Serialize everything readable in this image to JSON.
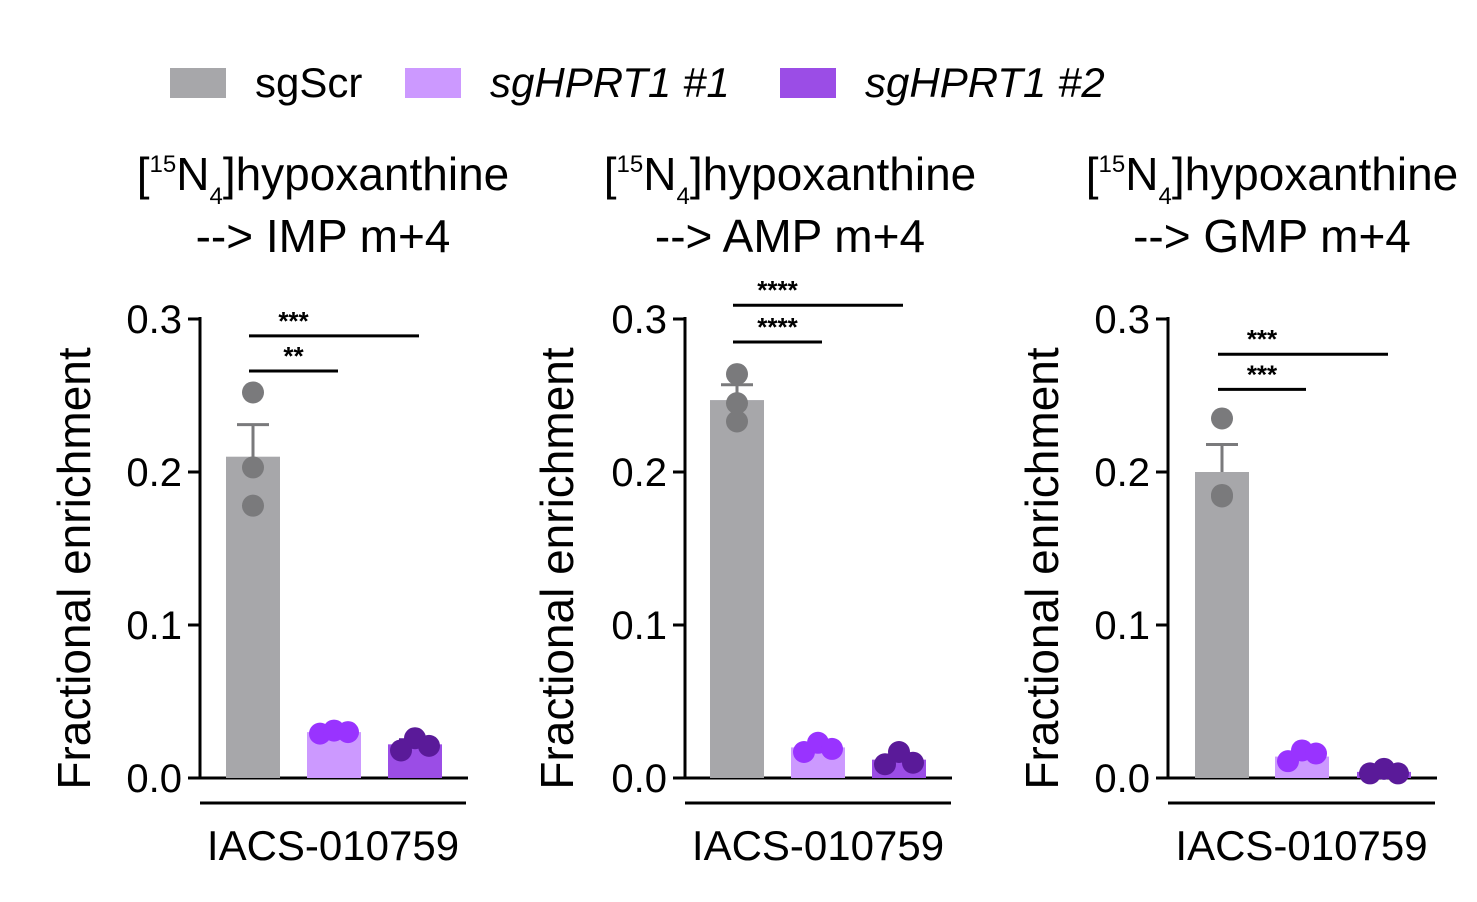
{
  "legend": [
    {
      "label": "sgScr",
      "color": "#a7a7aa",
      "italic": false
    },
    {
      "label": "sgHPRT1 #1",
      "color": "#cc99ff",
      "italic": true
    },
    {
      "label": "sgHPRT1 #2",
      "color": "#9b4de6",
      "italic": true
    }
  ],
  "colors": {
    "sgScr_bar": "#a7a7aa",
    "sgScr_point": "#7a7a7c",
    "h1_bar": "#cc99ff",
    "h1_point": "#9933ff",
    "h2_bar": "#9b4de6",
    "h2_point": "#5a1a99"
  },
  "chart_data": [
    {
      "type": "bar",
      "title_prefix": "[",
      "title_sup": "15",
      "title_element": "N",
      "title_sub": "4",
      "title_suffix": "]hypoxanthine",
      "title_line2": "--> IMP m+4",
      "ylabel": "Fractional enrichment",
      "xlabel": "IACS-010759",
      "ylim": [
        0,
        0.3
      ],
      "yticks": [
        "0.0",
        "0.1",
        "0.2",
        "0.3"
      ],
      "series": [
        {
          "name": "sgScr",
          "value": 0.21,
          "sem": 0.021,
          "points": [
            0.252,
            0.203,
            0.178
          ]
        },
        {
          "name": "sgHPRT1 #1",
          "value": 0.03,
          "sem": 0.001,
          "points": [
            0.029,
            0.031,
            0.03
          ]
        },
        {
          "name": "sgHPRT1 #2",
          "value": 0.022,
          "sem": 0.003,
          "points": [
            0.018,
            0.026,
            0.021
          ]
        }
      ],
      "significance": [
        {
          "text": "***",
          "from": 0,
          "to": 2,
          "level": 0.289
        },
        {
          "text": "**",
          "from": 0,
          "to": 1,
          "level": 0.266
        }
      ]
    },
    {
      "type": "bar",
      "title_prefix": "[",
      "title_sup": "15",
      "title_element": "N",
      "title_sub": "4",
      "title_suffix": "]hypoxanthine",
      "title_line2": "--> AMP m+4",
      "ylabel": "Fractional enrichment",
      "xlabel": "IACS-010759",
      "ylim": [
        0,
        0.3
      ],
      "yticks": [
        "0.0",
        "0.1",
        "0.2",
        "0.3"
      ],
      "series": [
        {
          "name": "sgScr",
          "value": 0.247,
          "sem": 0.01,
          "points": [
            0.233,
            0.264,
            0.245
          ]
        },
        {
          "name": "sgHPRT1 #1",
          "value": 0.02,
          "sem": 0.002,
          "points": [
            0.017,
            0.023,
            0.019
          ]
        },
        {
          "name": "sgHPRT1 #2",
          "value": 0.012,
          "sem": 0.003,
          "points": [
            0.009,
            0.017,
            0.01
          ]
        }
      ],
      "significance": [
        {
          "text": "****",
          "from": 0,
          "to": 2,
          "level": 0.309
        },
        {
          "text": "****",
          "from": 0,
          "to": 1,
          "level": 0.285
        }
      ]
    },
    {
      "type": "bar",
      "title_prefix": "[",
      "title_sup": "15",
      "title_element": "N",
      "title_sub": "4",
      "title_suffix": "]hypoxanthine",
      "title_line2": "--> GMP m+4",
      "ylabel": "Fractional enrichment",
      "xlabel": "IACS-010759",
      "ylim": [
        0,
        0.3
      ],
      "yticks": [
        "0.0",
        "0.1",
        "0.2",
        "0.3"
      ],
      "series": [
        {
          "name": "sgScr",
          "value": 0.2,
          "sem": 0.018,
          "points": [
            0.235,
            0.184,
            0.185
          ]
        },
        {
          "name": "sgHPRT1 #1",
          "value": 0.014,
          "sem": 0.003,
          "points": [
            0.011,
            0.018,
            0.016
          ]
        },
        {
          "name": "sgHPRT1 #2",
          "value": 0.004,
          "sem": 0.001,
          "points": [
            0.003,
            0.006,
            0.003
          ]
        }
      ],
      "significance": [
        {
          "text": "***",
          "from": 0,
          "to": 2,
          "level": 0.277
        },
        {
          "text": "***",
          "from": 0,
          "to": 1,
          "level": 0.254
        }
      ]
    }
  ]
}
